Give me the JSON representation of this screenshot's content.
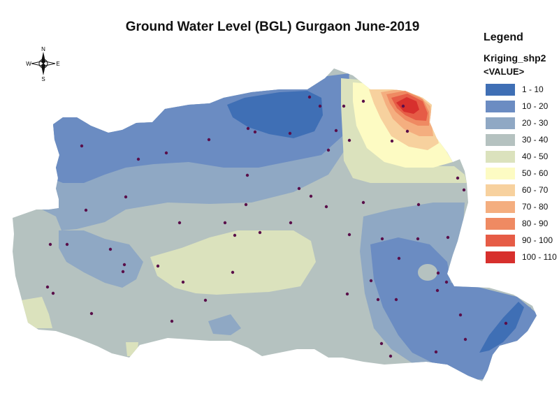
{
  "title": "Ground Water Level (BGL) Gurgaon June-2019",
  "compass": {
    "north": "N",
    "south": "S",
    "east": "E",
    "west": "W"
  },
  "legend": {
    "title": "Legend",
    "layer": "Kriging_shp2",
    "field": "<VALUE>",
    "classes": [
      {
        "label": "1 - 10",
        "color": "#3f6fb5"
      },
      {
        "label": "10 - 20",
        "color": "#6b8cc2"
      },
      {
        "label": "20 - 30",
        "color": "#8fa8c4"
      },
      {
        "label": "30 - 40",
        "color": "#b5c2c0"
      },
      {
        "label": "40 - 50",
        "color": "#dbe2bd"
      },
      {
        "label": "50 - 60",
        "color": "#fdfbc3"
      },
      {
        "label": "60 - 70",
        "color": "#f7d19e"
      },
      {
        "label": "70 - 80",
        "color": "#f4ae7f"
      },
      {
        "label": "80 - 90",
        "color": "#ef8a62"
      },
      {
        "label": "90 - 100",
        "color": "#e65c46"
      },
      {
        "label": "100 - 110",
        "color": "#d7302d"
      }
    ]
  },
  "colors": {
    "well_marker": "#5a0f4a",
    "title_text": "#111111"
  }
}
